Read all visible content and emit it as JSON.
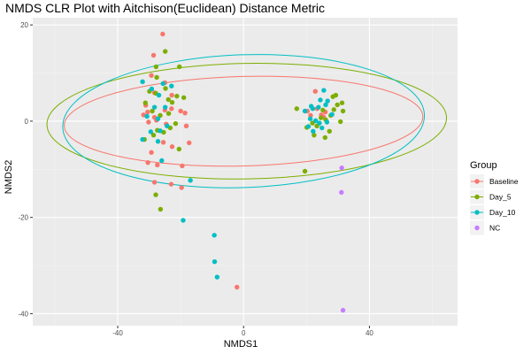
{
  "chart_data": {
    "type": "scatter",
    "title": "NMDS CLR Plot with Aitchison(Euclidean) Distance Metric",
    "xlabel": "NMDS1",
    "ylabel": "NMDS2",
    "xlim": [
      -67,
      68
    ],
    "ylim": [
      -42.5,
      21.5
    ],
    "x_ticks": [
      -40,
      0,
      40
    ],
    "y_ticks": [
      -40,
      -20,
      0,
      20
    ],
    "x_tick_labels": [
      "-40",
      "0",
      "40"
    ],
    "y_tick_labels": [
      "-40",
      "-20",
      "0",
      "20"
    ],
    "grid": true,
    "legend": {
      "title": "Group",
      "position": "right"
    },
    "series": [
      {
        "name": "Baseline",
        "color": "#F8766D",
        "ellipse": {
          "cx": 0,
          "cy": 0,
          "rx": 57,
          "ry": 9.3,
          "angle_deg": -1.5
        },
        "points": [
          [
            -25.7,
            18.1
          ],
          [
            -28.6,
            13.7
          ],
          [
            -22.8,
            5.4
          ],
          [
            -29.3,
            9.5
          ],
          [
            -25.0,
            8.0
          ],
          [
            -28.3,
            5.9
          ],
          [
            -31.1,
            3.3
          ],
          [
            -28.3,
            0.8
          ],
          [
            -25.0,
            2.3
          ],
          [
            -22.9,
            2.6
          ],
          [
            -20.0,
            2.1
          ],
          [
            -18.6,
            1.7
          ],
          [
            -30.2,
            -0.2
          ],
          [
            -27.7,
            0.2
          ],
          [
            -24.6,
            -0.6
          ],
          [
            -18.2,
            -1.0
          ],
          [
            -30.5,
            1.9
          ],
          [
            -31.8,
            1.3
          ],
          [
            -17.3,
            -4.5
          ],
          [
            -29.3,
            -6.5
          ],
          [
            -25.5,
            -4.4
          ],
          [
            -22.7,
            -5.3
          ],
          [
            -30.4,
            -8.6
          ],
          [
            -27.4,
            -9.1
          ],
          [
            -19.5,
            -9.3
          ],
          [
            -28.3,
            -12.7
          ],
          [
            -23.0,
            -13.1
          ],
          [
            -19.7,
            -13.8
          ],
          [
            -2.1,
            -34.5
          ],
          [
            20.3,
            2.1
          ],
          [
            23.4,
            2.6
          ],
          [
            26.0,
            1.9
          ],
          [
            21.3,
            1.2
          ],
          [
            24.7,
            1.3
          ],
          [
            22.8,
            6.2
          ],
          [
            25.4,
            0.9
          ]
        ]
      },
      {
        "name": "Day_5",
        "color": "#7CAE00",
        "ellipse": {
          "cx": 1,
          "cy": 0,
          "rx": 63.5,
          "ry": 12.0,
          "angle_deg": -1
        },
        "points": [
          [
            -24.9,
            14.5
          ],
          [
            -27.8,
            11.3
          ],
          [
            -20.4,
            11.3
          ],
          [
            -27.6,
            9.1
          ],
          [
            -29.9,
            6.2
          ],
          [
            -27.9,
            5.8
          ],
          [
            -24.8,
            6.8
          ],
          [
            -23.9,
            4.5
          ],
          [
            -21.2,
            5.2
          ],
          [
            -19.0,
            4.9
          ],
          [
            -22.7,
            3.9
          ],
          [
            -31.2,
            3.8
          ],
          [
            -29.0,
            2.1
          ],
          [
            -26.5,
            1.2
          ],
          [
            -21.6,
            -0.5
          ],
          [
            -25.4,
            -2.3
          ],
          [
            -28.6,
            -2.9
          ],
          [
            -31.5,
            -3.8
          ],
          [
            -27.4,
            -1.9
          ],
          [
            -23.3,
            -1.4
          ],
          [
            -20.5,
            -5.8
          ],
          [
            -26.4,
            -18.3
          ],
          [
            -27.9,
            -15.3
          ],
          [
            -23.8,
            1.6
          ],
          [
            19.5,
            -10.4
          ],
          [
            16.9,
            2.6
          ],
          [
            21.9,
            -0.4
          ],
          [
            24.6,
            0.7
          ],
          [
            27.7,
            1.2
          ],
          [
            31.3,
            3.8
          ],
          [
            28.7,
            2.4
          ],
          [
            29.8,
            3.4
          ],
          [
            31.6,
            2.1
          ],
          [
            30.8,
            -0.1
          ],
          [
            27.3,
            -2.1
          ],
          [
            25.9,
            -3.4
          ],
          [
            22.4,
            -2.9
          ],
          [
            20.1,
            -1.3
          ],
          [
            26.1,
            0.3
          ],
          [
            29.3,
            5.4
          ],
          [
            28.4,
            5.1
          ],
          [
            23.3,
            -1.0
          ],
          [
            25.2,
            2.3
          ]
        ]
      },
      {
        "name": "Day_10",
        "color": "#00BFC4",
        "ellipse": {
          "cx": 0,
          "cy": 0,
          "rx": 57.5,
          "ry": 13.8,
          "angle_deg": -2
        },
        "points": [
          [
            -32.1,
            8.2
          ],
          [
            -29.2,
            6.7
          ],
          [
            -26.9,
            5.4
          ],
          [
            -25.6,
            7.8
          ],
          [
            -22.9,
            7.3
          ],
          [
            -24.9,
            2.9
          ],
          [
            -28.3,
            2.9
          ],
          [
            -30.7,
            1.0
          ],
          [
            -27.2,
            0.5
          ],
          [
            -24.3,
            -1.0
          ],
          [
            -29.5,
            -2.2
          ],
          [
            -26.5,
            -2.0
          ],
          [
            -27.2,
            -4.2
          ],
          [
            -32.1,
            -3.8
          ],
          [
            -26.0,
            -8.2
          ],
          [
            -19.2,
            -20.6
          ],
          [
            -16.9,
            -12.3
          ],
          [
            -8.4,
            -32.4
          ],
          [
            -9.2,
            -29.2
          ],
          [
            -9.3,
            -23.7
          ],
          [
            19.5,
            2.1
          ],
          [
            22.0,
            2.6
          ],
          [
            24.4,
            4.4
          ],
          [
            26.7,
            4.2
          ],
          [
            25.5,
            6.4
          ],
          [
            21.5,
            3.1
          ],
          [
            21.2,
            0.5
          ],
          [
            22.9,
            0.1
          ],
          [
            24.1,
            -0.4
          ],
          [
            22.1,
            -2.1
          ],
          [
            24.9,
            -1.4
          ],
          [
            26.5,
            -0.2
          ],
          [
            28.1,
            1.4
          ],
          [
            26.1,
            3.4
          ],
          [
            23.8,
            2.9
          ],
          [
            20.6,
            -1.1
          ]
        ]
      },
      {
        "name": "NC",
        "color": "#C77CFF",
        "ellipse": null,
        "points": [
          [
            31.2,
            -9.7
          ],
          [
            31.1,
            -14.8
          ],
          [
            31.6,
            -39.3
          ]
        ]
      }
    ]
  }
}
